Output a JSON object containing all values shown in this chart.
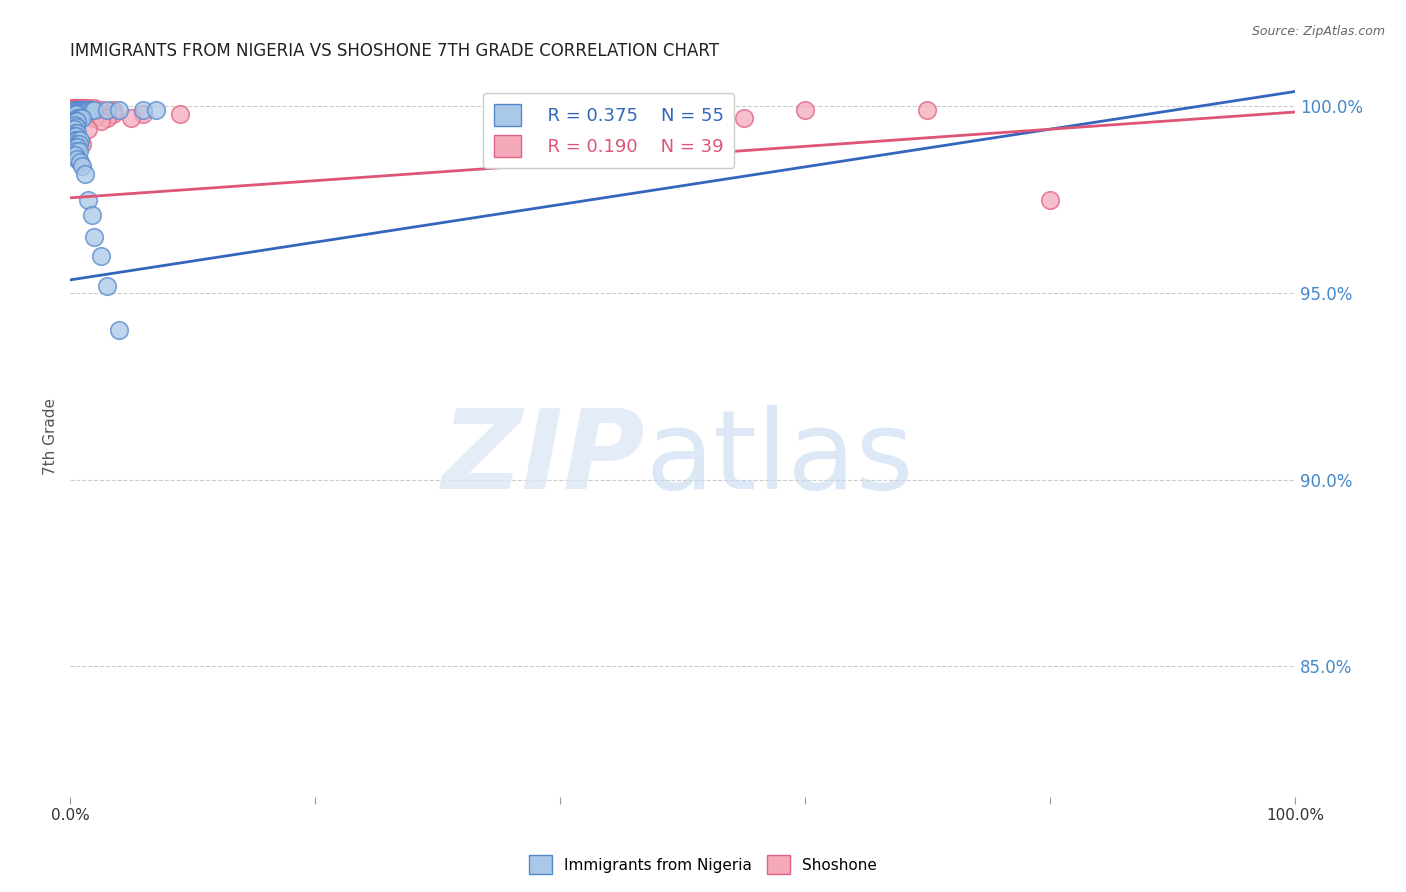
{
  "title": "IMMIGRANTS FROM NIGERIA VS SHOSHONE 7TH GRADE CORRELATION CHART",
  "source": "Source: ZipAtlas.com",
  "ylabel": "7th Grade",
  "yticks": [
    0.85,
    0.9,
    0.95,
    1.0
  ],
  "ytick_labels": [
    "85.0%",
    "90.0%",
    "95.0%",
    "100.0%"
  ],
  "xlim": [
    0.0,
    1.0
  ],
  "ylim": [
    0.815,
    1.008
  ],
  "legend_blue_r": "R = 0.375",
  "legend_blue_n": "N = 55",
  "legend_pink_r": "R = 0.190",
  "legend_pink_n": "N = 39",
  "blue_color": "#aac8e8",
  "pink_color": "#f4aabb",
  "blue_edge_color": "#5588cc",
  "pink_edge_color": "#e06080",
  "blue_line_color": "#3366bb",
  "pink_line_color": "#dd5577",
  "blue_scatter": [
    [
      0.004,
      0.999
    ],
    [
      0.005,
      0.999
    ],
    [
      0.006,
      0.999
    ],
    [
      0.007,
      0.999
    ],
    [
      0.008,
      0.999
    ],
    [
      0.009,
      0.999
    ],
    [
      0.01,
      0.999
    ],
    [
      0.011,
      0.999
    ],
    [
      0.012,
      0.999
    ],
    [
      0.013,
      0.999
    ],
    [
      0.014,
      0.999
    ],
    [
      0.015,
      0.999
    ],
    [
      0.016,
      0.999
    ],
    [
      0.018,
      0.999
    ],
    [
      0.02,
      0.999
    ],
    [
      0.03,
      0.999
    ],
    [
      0.04,
      0.999
    ],
    [
      0.06,
      0.999
    ],
    [
      0.07,
      0.999
    ],
    [
      0.004,
      0.998
    ],
    [
      0.005,
      0.998
    ],
    [
      0.006,
      0.997
    ],
    [
      0.007,
      0.997
    ],
    [
      0.008,
      0.997
    ],
    [
      0.01,
      0.997
    ],
    [
      0.003,
      0.996
    ],
    [
      0.005,
      0.996
    ],
    [
      0.006,
      0.996
    ],
    [
      0.004,
      0.995
    ],
    [
      0.005,
      0.9945
    ],
    [
      0.003,
      0.994
    ],
    [
      0.004,
      0.993
    ],
    [
      0.006,
      0.993
    ],
    [
      0.003,
      0.992
    ],
    [
      0.005,
      0.992
    ],
    [
      0.004,
      0.991
    ],
    [
      0.006,
      0.991
    ],
    [
      0.008,
      0.991
    ],
    [
      0.005,
      0.99
    ],
    [
      0.007,
      0.99
    ],
    [
      0.004,
      0.989
    ],
    [
      0.006,
      0.989
    ],
    [
      0.005,
      0.988
    ],
    [
      0.007,
      0.988
    ],
    [
      0.004,
      0.987
    ],
    [
      0.006,
      0.986
    ],
    [
      0.008,
      0.985
    ],
    [
      0.01,
      0.984
    ],
    [
      0.012,
      0.982
    ],
    [
      0.015,
      0.975
    ],
    [
      0.018,
      0.971
    ],
    [
      0.02,
      0.965
    ],
    [
      0.025,
      0.96
    ],
    [
      0.03,
      0.952
    ],
    [
      0.04,
      0.94
    ]
  ],
  "pink_scatter": [
    [
      0.002,
      0.9995
    ],
    [
      0.003,
      0.9995
    ],
    [
      0.004,
      0.9995
    ],
    [
      0.005,
      0.9995
    ],
    [
      0.006,
      0.9995
    ],
    [
      0.007,
      0.9995
    ],
    [
      0.008,
      0.9995
    ],
    [
      0.009,
      0.9995
    ],
    [
      0.01,
      0.9995
    ],
    [
      0.012,
      0.9995
    ],
    [
      0.015,
      0.9995
    ],
    [
      0.02,
      0.9995
    ],
    [
      0.025,
      0.999
    ],
    [
      0.035,
      0.999
    ],
    [
      0.002,
      0.998
    ],
    [
      0.003,
      0.998
    ],
    [
      0.004,
      0.998
    ],
    [
      0.005,
      0.997
    ],
    [
      0.006,
      0.997
    ],
    [
      0.003,
      0.996
    ],
    [
      0.004,
      0.996
    ],
    [
      0.002,
      0.9935
    ],
    [
      0.005,
      0.992
    ],
    [
      0.003,
      0.9905
    ],
    [
      0.004,
      0.9895
    ],
    [
      0.003,
      0.987
    ],
    [
      0.6,
      0.999
    ],
    [
      0.7,
      0.999
    ],
    [
      0.55,
      0.997
    ],
    [
      0.8,
      0.975
    ],
    [
      0.06,
      0.998
    ],
    [
      0.09,
      0.998
    ],
    [
      0.05,
      0.997
    ],
    [
      0.035,
      0.998
    ],
    [
      0.03,
      0.997
    ],
    [
      0.02,
      0.997
    ],
    [
      0.025,
      0.996
    ],
    [
      0.015,
      0.994
    ],
    [
      0.01,
      0.99
    ]
  ],
  "blue_trendline_x": [
    0.0,
    1.0
  ],
  "blue_trendline_y": [
    0.9535,
    1.004
  ],
  "pink_trendline_x": [
    0.0,
    1.0
  ],
  "pink_trendline_y": [
    0.9755,
    0.9985
  ]
}
